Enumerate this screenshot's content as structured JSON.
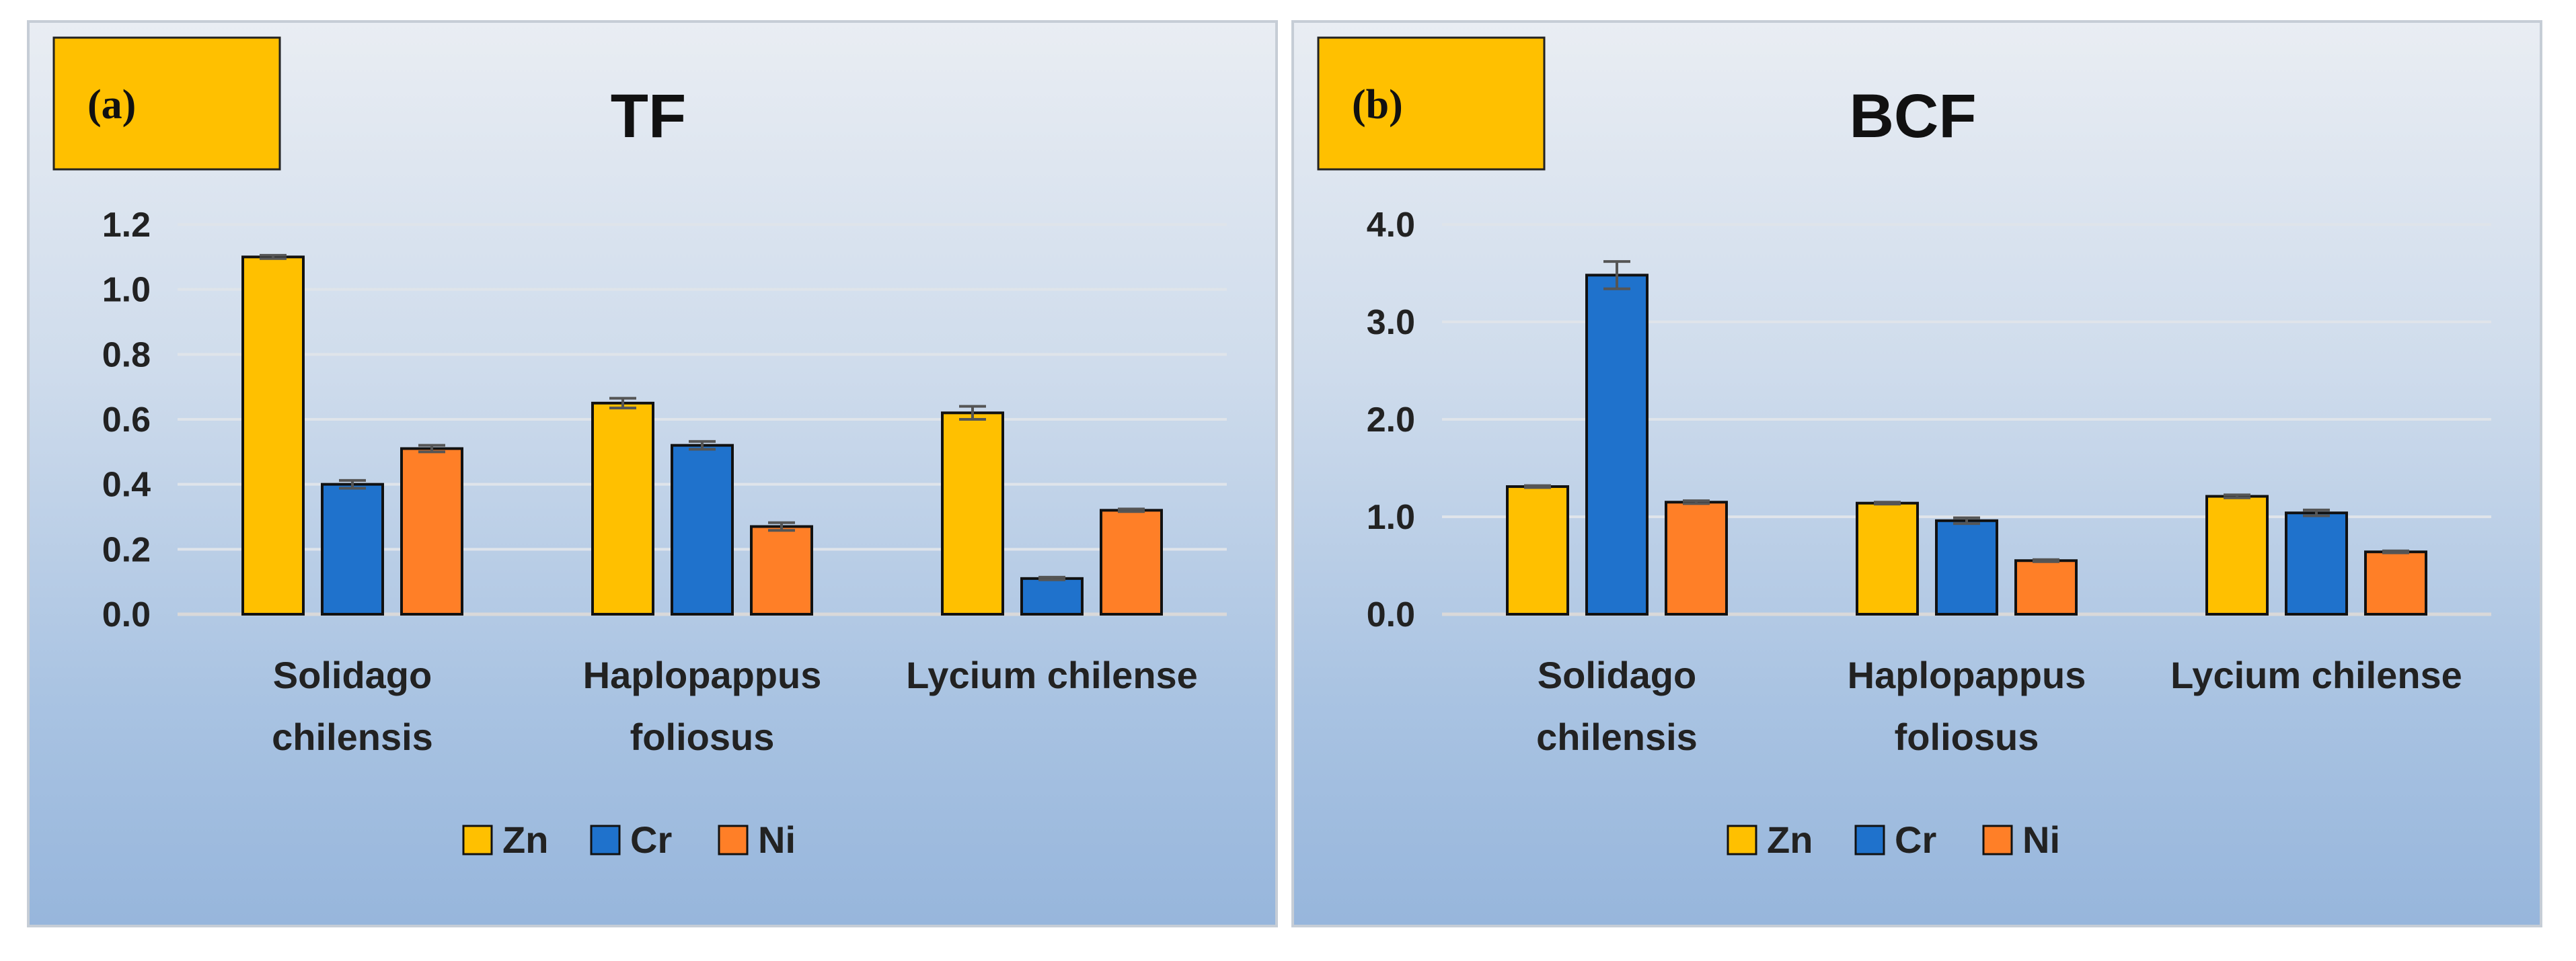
{
  "chart_data": [
    {
      "type": "bar",
      "panel_tag": "(a)",
      "title": "TF",
      "categories": [
        [
          "Solidago",
          "chilensis"
        ],
        [
          "Haplopappus",
          "foliosus"
        ],
        [
          "Lycium chilense"
        ]
      ],
      "series": [
        {
          "name": "Zn",
          "color": "#FFC000",
          "values": [
            1.1,
            0.65,
            0.62
          ],
          "errors": [
            0.005,
            0.015,
            0.02
          ]
        },
        {
          "name": "Cr",
          "color": "#1F72CC",
          "values": [
            0.4,
            0.52,
            0.11
          ],
          "errors": [
            0.012,
            0.012,
            0.004
          ]
        },
        {
          "name": "Ni",
          "color": "#FF7F27",
          "values": [
            0.51,
            0.27,
            0.32
          ],
          "errors": [
            0.01,
            0.012,
            0.004
          ]
        }
      ],
      "ylim": [
        0,
        1.2
      ],
      "yticks": [
        "0.0",
        "0.2",
        "0.4",
        "0.6",
        "0.8",
        "1.0",
        "1.2"
      ],
      "xlabel": "",
      "ylabel": "",
      "grid": true,
      "legend": "bottom"
    },
    {
      "type": "bar",
      "panel_tag": "(b)",
      "title": "BCF",
      "categories": [
        [
          "Solidago",
          "chilensis"
        ],
        [
          "Haplopappus",
          "foliosus"
        ],
        [
          "Lycium chilense"
        ]
      ],
      "series": [
        {
          "name": "Zn",
          "color": "#FFC000",
          "values": [
            1.31,
            1.14,
            1.21
          ],
          "errors": [
            0.01,
            0.01,
            0.015
          ]
        },
        {
          "name": "Cr",
          "color": "#1F72CC",
          "values": [
            3.48,
            0.96,
            1.04
          ],
          "errors": [
            0.14,
            0.03,
            0.03
          ]
        },
        {
          "name": "Ni",
          "color": "#FF7F27",
          "values": [
            1.15,
            0.55,
            0.64
          ],
          "errors": [
            0.015,
            0.01,
            0.01
          ]
        }
      ],
      "ylim": [
        0,
        4.0
      ],
      "yticks": [
        "0.0",
        "1.0",
        "2.0",
        "3.0",
        "4.0"
      ],
      "xlabel": "",
      "ylabel": "",
      "grid": true,
      "legend": "bottom"
    }
  ]
}
